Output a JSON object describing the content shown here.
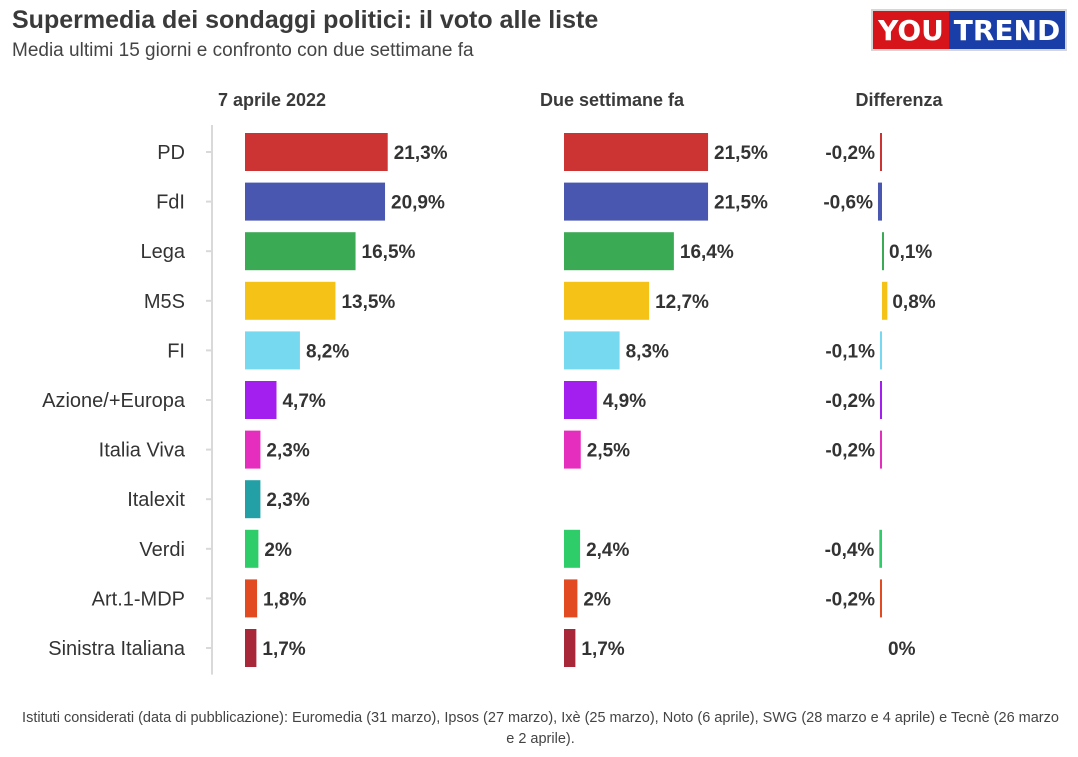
{
  "header": {
    "title": "Supermedia dei sondaggi politici: il voto alle liste",
    "subtitle": "Media ultimi 15 giorni e confronto con due settimane fa"
  },
  "logo": {
    "part1": "YOU",
    "part2": "TREND",
    "colors": {
      "part1_bg": "#d7141a",
      "part2_bg": "#1a3ea8"
    }
  },
  "footnote": "Istituti considerati (data di pubblicazione): Euromedia (31 marzo), Ipsos (27 marzo), Ixè (25 marzo), Noto (6 aprile), SWG (28 marzo e 4 aprile) e Tecnè (26 marzo e 2 aprile).",
  "chart_data": {
    "type": "bar",
    "orientation": "horizontal",
    "grid": false,
    "categories": [
      "PD",
      "FdI",
      "Lega",
      "M5S",
      "FI",
      "Azione/+Europa",
      "Italia Viva",
      "Italexit",
      "Verdi",
      "Art.1-MDP",
      "Sinistra Italiana"
    ],
    "colors": [
      "#cc3333",
      "#4a57b0",
      "#3aaa55",
      "#f5c218",
      "#76d9ef",
      "#a21ff0",
      "#e62ebe",
      "#22a0a5",
      "#2fcc6a",
      "#e24a22",
      "#a8283a"
    ],
    "series": [
      {
        "name": "7 aprile 2022",
        "values": [
          21.3,
          20.9,
          16.5,
          13.5,
          8.2,
          4.7,
          2.3,
          2.3,
          2.0,
          1.8,
          1.7
        ],
        "labels": [
          "21,3%",
          "20,9%",
          "16,5%",
          "13,5%",
          "8,2%",
          "4,7%",
          "2,3%",
          "2,3%",
          "2%",
          "1,8%",
          "1,7%"
        ]
      },
      {
        "name": "Due settimane fa",
        "values": [
          21.5,
          21.5,
          16.4,
          12.7,
          8.3,
          4.9,
          2.5,
          null,
          2.4,
          2.0,
          1.7
        ],
        "labels": [
          "21,5%",
          "21,5%",
          "16,4%",
          "12,7%",
          "8,3%",
          "4,9%",
          "2,5%",
          "",
          "2,4%",
          "2%",
          "1,7%"
        ]
      },
      {
        "name": "Differenza",
        "values": [
          -0.2,
          -0.6,
          0.1,
          0.8,
          -0.1,
          -0.2,
          -0.2,
          null,
          -0.4,
          -0.2,
          0.0
        ],
        "labels": [
          "-0,2%",
          "-0,6%",
          "0,1%",
          "0,8%",
          "-0,1%",
          "-0,2%",
          "-0,2%",
          "",
          "-0,4%",
          "-0,2%",
          "0%"
        ]
      }
    ]
  }
}
